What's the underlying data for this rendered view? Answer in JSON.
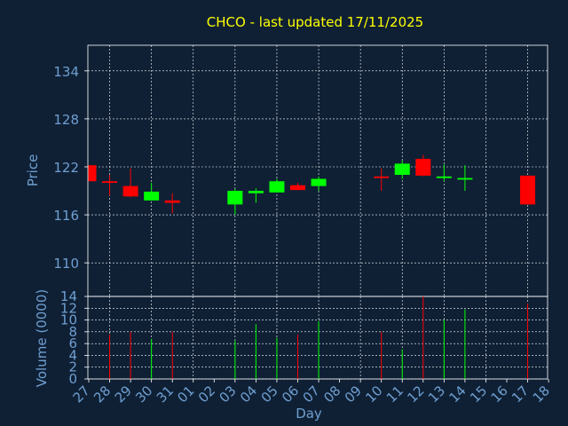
{
  "chart_data": {
    "type": "candlestick",
    "title": "CHCO - last updated 17/11/2025",
    "colors": {
      "background": "#0f2035",
      "title": "#ffff00",
      "axis_text": "#6f9fd0",
      "frame": "#ffffff",
      "grid": "#ffffff",
      "up": "#00ff00",
      "down": "#ff0000"
    },
    "price_panel": {
      "ylabel": "Price",
      "ylim": [
        105.8,
        137.2
      ],
      "yticks": [
        110,
        116,
        122,
        128,
        134
      ],
      "grid": true
    },
    "volume_panel": {
      "ylabel": "Volume (0000)",
      "ylim": [
        0,
        14
      ],
      "yticks": [
        0,
        2,
        4,
        6,
        8,
        10,
        12,
        14
      ],
      "grid": true
    },
    "xlabel": "Day",
    "x_ticks": [
      "27",
      "28",
      "29",
      "30",
      "31",
      "01",
      "02",
      "03",
      "04",
      "05",
      "06",
      "07",
      "08",
      "09",
      "10",
      "11",
      "12",
      "13",
      "14",
      "15",
      "16",
      "17",
      "18"
    ],
    "candles": [
      {
        "day": "27",
        "open": 122.2,
        "high": 122.2,
        "low": 120.2,
        "close": 120.2,
        "volume": 0
      },
      {
        "day": "28",
        "open": 120.2,
        "high": 121.0,
        "low": 118.4,
        "close": 120.0,
        "volume": 7.5
      },
      {
        "day": "29",
        "open": 119.6,
        "high": 121.8,
        "low": 118.2,
        "close": 118.3,
        "volume": 8.0
      },
      {
        "day": "30",
        "open": 117.8,
        "high": 120.0,
        "low": 117.8,
        "close": 118.9,
        "volume": 6.8
      },
      {
        "day": "31",
        "open": 117.8,
        "high": 118.7,
        "low": 116.2,
        "close": 117.5,
        "volume": 8.0
      },
      {
        "day": "03",
        "open": 117.3,
        "high": 119.3,
        "low": 116.0,
        "close": 119.0,
        "volume": 6.5
      },
      {
        "day": "04",
        "open": 118.7,
        "high": 119.3,
        "low": 117.5,
        "close": 119.0,
        "volume": 9.3
      },
      {
        "day": "05",
        "open": 118.8,
        "high": 120.5,
        "low": 118.8,
        "close": 120.2,
        "volume": 7.0
      },
      {
        "day": "06",
        "open": 119.7,
        "high": 120.0,
        "low": 119.1,
        "close": 119.1,
        "volume": 7.5
      },
      {
        "day": "07",
        "open": 119.6,
        "high": 120.8,
        "low": 119.0,
        "close": 120.5,
        "volume": 9.8
      },
      {
        "day": "10",
        "open": 120.8,
        "high": 121.8,
        "low": 119.0,
        "close": 120.6,
        "volume": 8.0
      },
      {
        "day": "11",
        "open": 121.0,
        "high": 122.8,
        "low": 120.5,
        "close": 122.4,
        "volume": 5.0
      },
      {
        "day": "12",
        "open": 123.0,
        "high": 123.5,
        "low": 120.8,
        "close": 120.9,
        "volume": 14.0
      },
      {
        "day": "13",
        "open": 120.6,
        "high": 122.3,
        "low": 120.2,
        "close": 120.8,
        "volume": 10.0
      },
      {
        "day": "14",
        "open": 120.4,
        "high": 122.2,
        "low": 119.0,
        "close": 120.6,
        "volume": 11.8
      },
      {
        "day": "17",
        "open": 120.9,
        "high": 120.9,
        "low": 117.3,
        "close": 117.3,
        "volume": 12.8
      }
    ]
  }
}
